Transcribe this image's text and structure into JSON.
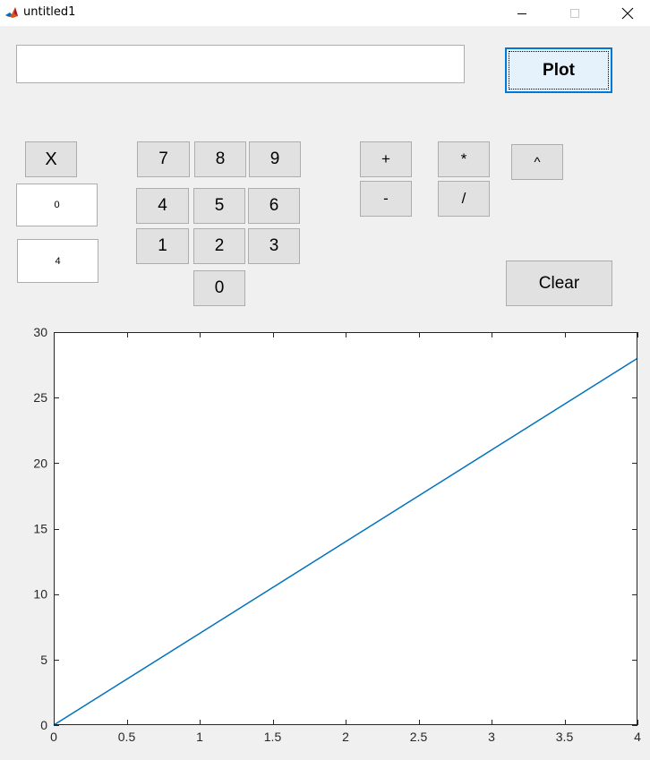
{
  "window": {
    "title": "untitled1",
    "icon": "matlab-icon"
  },
  "expression": {
    "value": "",
    "placeholder": ""
  },
  "buttons": {
    "plot": "Plot",
    "x": "X",
    "clear": "Clear",
    "digits": {
      "d7": "7",
      "d8": "8",
      "d9": "9",
      "d4": "4",
      "d5": "5",
      "d6": "6",
      "d1": "1",
      "d2": "2",
      "d3": "3",
      "d0": "0"
    },
    "ops": {
      "plus": "+",
      "minus": "-",
      "times": "*",
      "divide": "/",
      "power": "^"
    }
  },
  "range": {
    "min": "0",
    "max": "4"
  },
  "chart_data": {
    "type": "line",
    "x": [
      0,
      4
    ],
    "series": [
      {
        "values": [
          0,
          28
        ],
        "color": "#0072bd"
      }
    ],
    "xlim": [
      0,
      4
    ],
    "ylim": [
      0,
      30
    ],
    "xticks": [
      0,
      0.5,
      1,
      1.5,
      2,
      2.5,
      3,
      3.5,
      4
    ],
    "yticks": [
      0,
      5,
      10,
      15,
      20,
      25,
      30
    ],
    "xtick_labels": [
      "0",
      "0.5",
      "1",
      "1.5",
      "2",
      "2.5",
      "3",
      "3.5",
      "4"
    ],
    "ytick_labels": [
      "0",
      "5",
      "10",
      "15",
      "20",
      "25",
      "30"
    ],
    "title": "",
    "xlabel": "",
    "ylabel": "",
    "grid": false,
    "box": true
  }
}
